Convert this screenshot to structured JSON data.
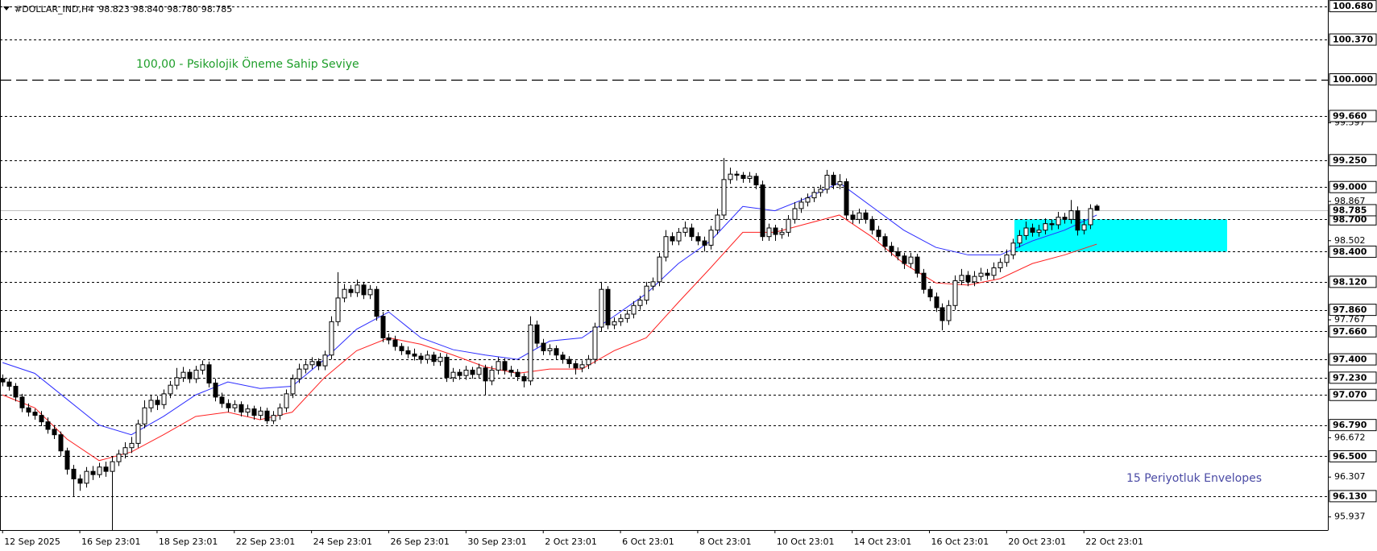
{
  "chart_data": {
    "type": "candlestick",
    "title": "#DOLLAR_IND,H4",
    "title_values": [
      "98.823",
      "98.840",
      "98.780",
      "98.785"
    ],
    "xlim": [
      -0.4,
      205.9
    ],
    "ylim": [
      95.815,
      100.737
    ],
    "yticks": [
      95.937,
      96.307,
      96.672,
      97.767,
      98.502,
      98.867,
      99.597
    ],
    "xticks": [
      {
        "value": 0,
        "label": "12 Sep 2025"
      },
      {
        "value": 12,
        "label": "16 Sep 23:01"
      },
      {
        "value": 24,
        "label": "18 Sep 23:01"
      },
      {
        "value": 36,
        "label": "22 Sep 23:01"
      },
      {
        "value": 48,
        "label": "24 Sep 23:01"
      },
      {
        "value": 60,
        "label": "26 Sep 23:01"
      },
      {
        "value": 72,
        "label": "30 Sep 23:01"
      },
      {
        "value": 84,
        "label": "2 Oct 23:01"
      },
      {
        "value": 96,
        "label": "6 Oct 23:01"
      },
      {
        "value": 108,
        "label": "8 Oct 23:01"
      },
      {
        "value": 120,
        "label": "10 Oct 23:01"
      },
      {
        "value": 132,
        "label": "14 Oct 23:01"
      },
      {
        "value": 144,
        "label": "16 Oct 23:01"
      },
      {
        "value": 156,
        "label": "20 Oct 23:01"
      },
      {
        "value": 168,
        "label": "22 Oct 23:01"
      }
    ],
    "levels": [
      {
        "value": 100.68,
        "label": "100.680"
      },
      {
        "value": 100.37,
        "label": "100.370"
      },
      {
        "value": 100,
        "label": "100.000",
        "dash": "long"
      },
      {
        "value": 99.66,
        "label": "99.660"
      },
      {
        "value": 99.25,
        "label": "99.250"
      },
      {
        "value": 99,
        "label": "99.000"
      },
      {
        "value": 98.7,
        "label": "98.700"
      },
      {
        "value": 98.4,
        "label": "98.400"
      },
      {
        "value": 98.12,
        "label": "98.120"
      },
      {
        "value": 97.86,
        "label": "97.860"
      },
      {
        "value": 97.66,
        "label": "97.660"
      },
      {
        "value": 97.4,
        "label": "97.400"
      },
      {
        "value": 97.23,
        "label": "97.230"
      },
      {
        "value": 97.07,
        "label": "97.070"
      },
      {
        "value": 96.79,
        "label": "96.790"
      },
      {
        "value": 96.5,
        "label": "96.500"
      },
      {
        "value": 96.13,
        "label": "96.130"
      }
    ],
    "current_price": {
      "value": 98.785,
      "label": "98.785"
    },
    "zone": {
      "from": 98.4,
      "to": 98.7,
      "color": "#00ffff"
    },
    "annotations": [
      {
        "text": "100,00 -  Psikolojik Öneme Sahip Seviye",
        "color": "#1e9e2a"
      },
      {
        "text": "15 Periyotluk Envelopes",
        "color": "#4b4ba5"
      }
    ],
    "series": [
      {
        "color": "#2b2bff",
        "x": [
          0,
          5,
          10,
          15,
          20,
          25,
          30,
          35,
          40,
          45,
          50,
          55,
          60,
          65,
          70,
          75,
          80,
          85,
          90,
          95,
          100,
          105,
          110,
          115,
          120,
          125,
          130,
          135,
          140,
          145,
          150,
          155,
          160,
          165,
          170
        ],
        "values": [
          97.37,
          97.27,
          97.03,
          96.79,
          96.7,
          96.87,
          97.07,
          97.19,
          97.13,
          97.15,
          97.4,
          97.68,
          97.84,
          97.6,
          97.49,
          97.44,
          97.4,
          97.57,
          97.6,
          97.8,
          98.01,
          98.29,
          98.5,
          98.82,
          98.78,
          98.9,
          99.04,
          98.82,
          98.6,
          98.44,
          98.37,
          98.37,
          98.5,
          98.6,
          98.74
        ]
      },
      {
        "color": "#ff2020",
        "x": [
          0,
          5,
          10,
          15,
          20,
          25,
          30,
          35,
          40,
          45,
          50,
          55,
          60,
          65,
          70,
          75,
          80,
          85,
          90,
          95,
          100,
          105,
          110,
          115,
          120,
          125,
          130,
          135,
          140,
          145,
          150,
          155,
          160,
          165,
          170
        ],
        "values": [
          97.07,
          96.95,
          96.66,
          96.46,
          96.54,
          96.7,
          96.87,
          96.91,
          96.84,
          96.91,
          97.23,
          97.48,
          97.6,
          97.54,
          97.44,
          97.33,
          97.27,
          97.31,
          97.31,
          97.48,
          97.6,
          97.93,
          98.25,
          98.58,
          98.58,
          98.66,
          98.74,
          98.54,
          98.29,
          98.11,
          98.09,
          98.15,
          98.29,
          98.37,
          98.47
        ]
      }
    ],
    "ohlc": [
      [
        97.22,
        97.26,
        97.15,
        97.19
      ],
      [
        97.19,
        97.22,
        97.11,
        97.15
      ],
      [
        97.15,
        97.18,
        97.01,
        97.05
      ],
      [
        97.05,
        97.08,
        96.91,
        96.95
      ],
      [
        96.95,
        96.99,
        96.87,
        96.91
      ],
      [
        96.91,
        96.94,
        96.84,
        96.88
      ],
      [
        96.88,
        96.92,
        96.78,
        96.82
      ],
      [
        96.82,
        96.86,
        96.71,
        96.75
      ],
      [
        96.75,
        96.79,
        96.66,
        96.7
      ],
      [
        96.7,
        96.73,
        96.5,
        96.55
      ],
      [
        96.55,
        96.58,
        96.33,
        96.38
      ],
      [
        96.38,
        96.42,
        96.13,
        96.29
      ],
      [
        96.29,
        96.33,
        96.18,
        96.25
      ],
      [
        96.25,
        96.4,
        96.21,
        96.36
      ],
      [
        96.36,
        96.41,
        96.28,
        96.33
      ],
      [
        96.33,
        96.44,
        96.3,
        96.4
      ],
      [
        96.4,
        96.45,
        96.31,
        96.36
      ],
      [
        96.36,
        96.5,
        95.81,
        96.45
      ],
      [
        96.45,
        96.56,
        96.41,
        96.52
      ],
      [
        96.52,
        96.63,
        96.48,
        96.58
      ],
      [
        96.58,
        96.68,
        96.53,
        96.62
      ],
      [
        96.62,
        96.84,
        96.58,
        96.8
      ],
      [
        96.8,
        97.02,
        96.76,
        96.95
      ],
      [
        96.95,
        97.07,
        96.91,
        97.02
      ],
      [
        97.02,
        97.06,
        96.93,
        96.98
      ],
      [
        96.98,
        97.12,
        96.94,
        97.08
      ],
      [
        97.08,
        97.2,
        97.04,
        97.16
      ],
      [
        97.16,
        97.32,
        97.12,
        97.23
      ],
      [
        97.23,
        97.33,
        97.19,
        97.28
      ],
      [
        97.28,
        97.31,
        97.18,
        97.22
      ],
      [
        97.22,
        97.34,
        97.18,
        97.3
      ],
      [
        97.3,
        97.39,
        97.26,
        97.35
      ],
      [
        97.35,
        97.38,
        97.14,
        97.18
      ],
      [
        97.18,
        97.22,
        97.01,
        97.05
      ],
      [
        97.05,
        97.09,
        96.95,
        96.99
      ],
      [
        96.99,
        97.03,
        96.91,
        96.95
      ],
      [
        96.95,
        97.02,
        96.91,
        96.98
      ],
      [
        96.98,
        97.01,
        96.87,
        96.91
      ],
      [
        96.91,
        96.98,
        96.87,
        96.94
      ],
      [
        96.94,
        96.97,
        96.84,
        96.88
      ],
      [
        96.88,
        96.96,
        96.84,
        96.92
      ],
      [
        96.92,
        96.95,
        96.8,
        96.83
      ],
      [
        96.83,
        96.92,
        96.8,
        96.88
      ],
      [
        96.88,
        96.99,
        96.84,
        96.95
      ],
      [
        96.95,
        97.12,
        96.91,
        97.08
      ],
      [
        97.08,
        97.26,
        97.04,
        97.22
      ],
      [
        97.22,
        97.36,
        97.18,
        97.31
      ],
      [
        97.31,
        97.39,
        97.27,
        97.35
      ],
      [
        97.35,
        97.42,
        97.31,
        97.38
      ],
      [
        97.38,
        97.41,
        97.3,
        97.34
      ],
      [
        97.34,
        97.48,
        97.3,
        97.44
      ],
      [
        97.44,
        97.8,
        97.4,
        97.75
      ],
      [
        97.75,
        98.21,
        97.71,
        97.97
      ],
      [
        97.97,
        98.1,
        97.93,
        98.05
      ],
      [
        98.05,
        98.09,
        97.98,
        98.02
      ],
      [
        98.02,
        98.14,
        97.98,
        98.09
      ],
      [
        98.09,
        98.12,
        97.96,
        98.0
      ],
      [
        98.0,
        98.09,
        97.96,
        98.05
      ],
      [
        98.05,
        98.08,
        97.76,
        97.8
      ],
      [
        97.8,
        97.84,
        97.56,
        97.6
      ],
      [
        97.6,
        97.64,
        97.54,
        97.58
      ],
      [
        97.58,
        97.62,
        97.48,
        97.52
      ],
      [
        97.52,
        97.55,
        97.44,
        97.48
      ],
      [
        97.48,
        97.52,
        97.41,
        97.45
      ],
      [
        97.45,
        97.5,
        97.39,
        97.43
      ],
      [
        97.43,
        97.46,
        97.36,
        97.4
      ],
      [
        97.4,
        97.48,
        97.36,
        97.44
      ],
      [
        97.44,
        97.47,
        97.34,
        97.38
      ],
      [
        97.38,
        97.46,
        97.34,
        97.42
      ],
      [
        97.42,
        97.45,
        97.19,
        97.23
      ],
      [
        97.23,
        97.32,
        97.19,
        97.28
      ],
      [
        97.28,
        97.31,
        97.21,
        97.25
      ],
      [
        97.25,
        97.34,
        97.21,
        97.3
      ],
      [
        97.3,
        97.33,
        97.22,
        97.26
      ],
      [
        97.26,
        97.36,
        97.22,
        97.32
      ],
      [
        97.32,
        97.35,
        97.07,
        97.2
      ],
      [
        97.2,
        97.34,
        97.16,
        97.3
      ],
      [
        97.3,
        97.42,
        97.26,
        97.38
      ],
      [
        97.38,
        97.41,
        97.26,
        97.3
      ],
      [
        97.3,
        97.34,
        97.24,
        97.28
      ],
      [
        97.28,
        97.31,
        97.2,
        97.24
      ],
      [
        97.24,
        97.27,
        97.14,
        97.2
      ],
      [
        97.2,
        97.8,
        97.16,
        97.72
      ],
      [
        97.72,
        97.76,
        97.51,
        97.55
      ],
      [
        97.55,
        97.59,
        97.44,
        97.48
      ],
      [
        97.48,
        97.54,
        97.44,
        97.5
      ],
      [
        97.5,
        97.53,
        97.4,
        97.44
      ],
      [
        97.44,
        97.47,
        97.36,
        97.4
      ],
      [
        97.4,
        97.43,
        97.32,
        97.36
      ],
      [
        97.36,
        97.39,
        97.26,
        97.32
      ],
      [
        97.32,
        97.39,
        97.28,
        97.35
      ],
      [
        97.35,
        97.44,
        97.31,
        97.4
      ],
      [
        97.4,
        97.74,
        97.36,
        97.7
      ],
      [
        97.7,
        98.12,
        97.66,
        98.05
      ],
      [
        98.05,
        98.08,
        97.68,
        97.72
      ],
      [
        97.72,
        97.79,
        97.68,
        97.75
      ],
      [
        97.75,
        97.82,
        97.71,
        97.78
      ],
      [
        97.78,
        97.86,
        97.74,
        97.82
      ],
      [
        97.82,
        97.94,
        97.78,
        97.9
      ],
      [
        97.9,
        97.99,
        97.86,
        97.95
      ],
      [
        97.95,
        98.12,
        97.91,
        98.08
      ],
      [
        98.08,
        98.16,
        98.04,
        98.12
      ],
      [
        98.12,
        98.39,
        98.08,
        98.35
      ],
      [
        98.35,
        98.6,
        98.31,
        98.54
      ],
      [
        98.54,
        98.58,
        98.46,
        98.5
      ],
      [
        98.5,
        98.62,
        98.46,
        98.58
      ],
      [
        98.58,
        98.68,
        98.54,
        98.62
      ],
      [
        98.62,
        98.66,
        98.5,
        98.54
      ],
      [
        98.54,
        98.58,
        98.46,
        98.5
      ],
      [
        98.5,
        98.54,
        98.4,
        98.46
      ],
      [
        98.46,
        98.64,
        98.42,
        98.6
      ],
      [
        98.6,
        98.8,
        98.56,
        98.74
      ],
      [
        98.74,
        99.27,
        98.7,
        99.07
      ],
      [
        99.07,
        99.18,
        99.03,
        99.12
      ],
      [
        99.12,
        99.15,
        99.06,
        99.11
      ],
      [
        99.11,
        99.14,
        99.04,
        99.08
      ],
      [
        99.08,
        99.14,
        99.04,
        99.1
      ],
      [
        99.1,
        99.13,
        98.98,
        99.02
      ],
      [
        99.02,
        99.06,
        98.5,
        98.54
      ],
      [
        98.54,
        98.66,
        98.5,
        98.62
      ],
      [
        98.62,
        98.65,
        98.5,
        98.56
      ],
      [
        98.56,
        98.62,
        98.52,
        98.58
      ],
      [
        98.58,
        98.74,
        98.54,
        98.7
      ],
      [
        98.7,
        98.86,
        98.66,
        98.8
      ],
      [
        98.8,
        98.9,
        98.76,
        98.86
      ],
      [
        98.86,
        98.94,
        98.82,
        98.9
      ],
      [
        98.9,
        98.99,
        98.86,
        98.95
      ],
      [
        98.95,
        99.02,
        98.91,
        98.98
      ],
      [
        98.98,
        99.16,
        98.94,
        99.11
      ],
      [
        99.11,
        99.14,
        98.98,
        99.02
      ],
      [
        99.02,
        99.12,
        98.98,
        99.05
      ],
      [
        99.05,
        99.08,
        98.7,
        98.74
      ],
      [
        98.74,
        98.78,
        98.66,
        98.7
      ],
      [
        98.7,
        98.8,
        98.66,
        98.76
      ],
      [
        98.76,
        98.79,
        98.66,
        98.7
      ],
      [
        98.7,
        98.73,
        98.56,
        98.6
      ],
      [
        98.6,
        98.64,
        98.5,
        98.54
      ],
      [
        98.54,
        98.57,
        98.41,
        98.45
      ],
      [
        98.45,
        98.49,
        98.36,
        98.4
      ],
      [
        98.4,
        98.44,
        98.32,
        98.36
      ],
      [
        98.36,
        98.39,
        98.24,
        98.29
      ],
      [
        98.29,
        98.39,
        98.25,
        98.35
      ],
      [
        98.35,
        98.38,
        98.16,
        98.2
      ],
      [
        98.2,
        98.24,
        98.01,
        98.05
      ],
      [
        98.05,
        98.08,
        97.94,
        97.98
      ],
      [
        97.98,
        98.02,
        97.84,
        97.88
      ],
      [
        97.88,
        97.92,
        97.67,
        97.76
      ],
      [
        97.76,
        97.95,
        97.72,
        97.9
      ],
      [
        97.9,
        98.18,
        97.86,
        98.13
      ],
      [
        98.13,
        98.24,
        98.09,
        98.18
      ],
      [
        98.18,
        98.22,
        98.08,
        98.12
      ],
      [
        98.12,
        98.22,
        98.08,
        98.17
      ],
      [
        98.17,
        98.25,
        98.13,
        98.2
      ],
      [
        98.2,
        98.24,
        98.14,
        98.18
      ],
      [
        98.18,
        98.3,
        98.14,
        98.25
      ],
      [
        98.25,
        98.34,
        98.21,
        98.3
      ],
      [
        98.3,
        98.42,
        98.26,
        98.37
      ],
      [
        98.37,
        98.52,
        98.33,
        98.48
      ],
      [
        98.48,
        98.6,
        98.44,
        98.55
      ],
      [
        98.55,
        98.68,
        98.51,
        98.62
      ],
      [
        98.62,
        98.66,
        98.54,
        98.58
      ],
      [
        98.58,
        98.65,
        98.54,
        98.6
      ],
      [
        98.6,
        98.71,
        98.56,
        98.66
      ],
      [
        98.66,
        98.7,
        98.6,
        98.65
      ],
      [
        98.65,
        98.77,
        98.61,
        98.72
      ],
      [
        98.72,
        98.76,
        98.66,
        98.7
      ],
      [
        98.7,
        98.88,
        98.66,
        98.78
      ],
      [
        98.78,
        98.82,
        98.55,
        98.6
      ],
      [
        98.6,
        98.7,
        98.56,
        98.65
      ],
      [
        98.65,
        98.84,
        98.61,
        98.8
      ],
      [
        98.823,
        98.84,
        98.78,
        98.785
      ]
    ]
  }
}
